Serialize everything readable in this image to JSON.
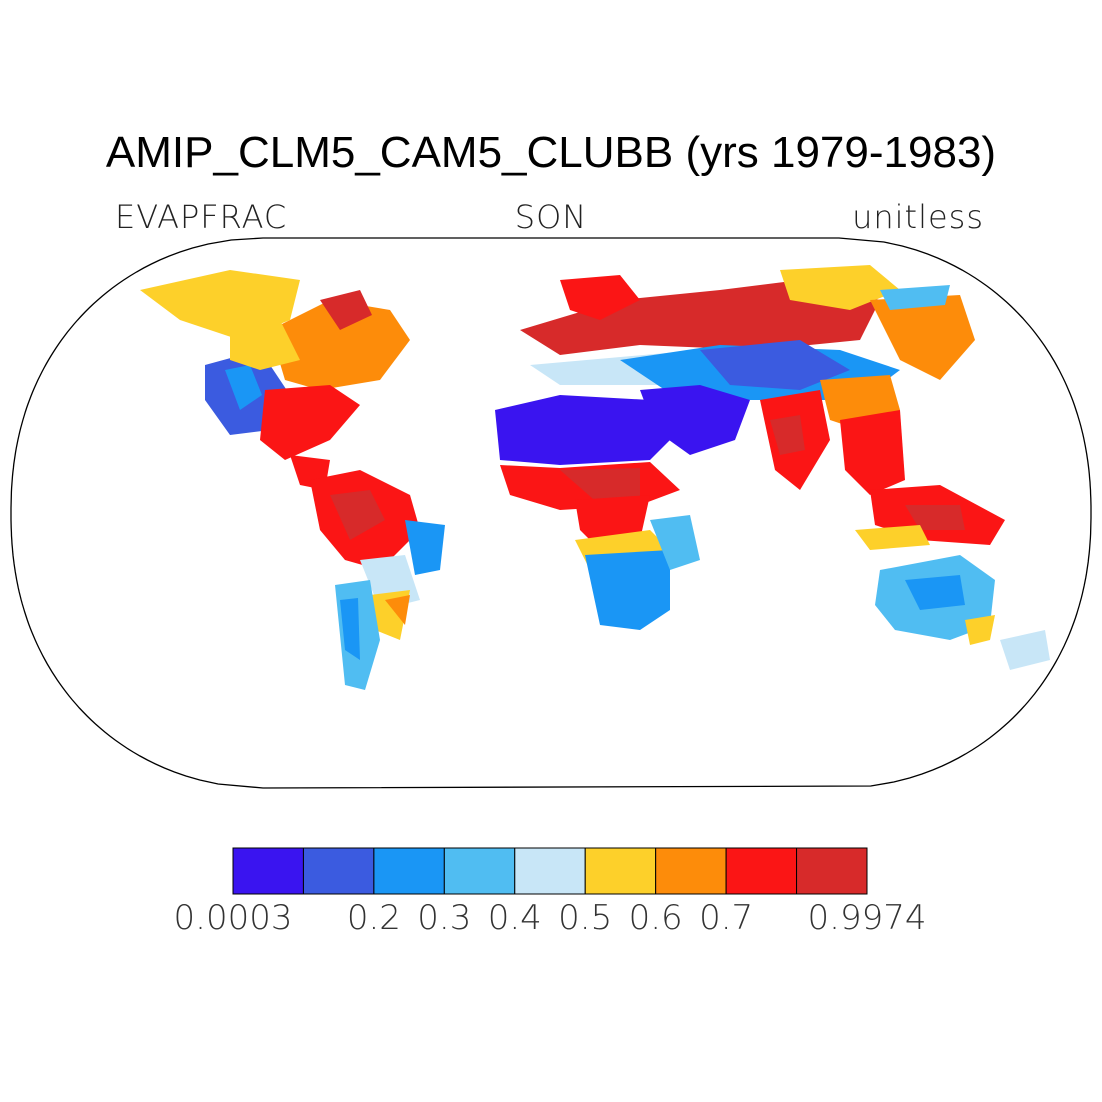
{
  "title": "AMIP_CLM5_CAM5_CLUBB (yrs 1979-1983)",
  "variable": "EVAPFRAC",
  "season": "SON",
  "units": "unitless",
  "projection": "Robinson",
  "colorbar": {
    "colors": [
      "#3a14f0",
      "#3b5be0",
      "#1a96f5",
      "#50bdf2",
      "#c8e6f7",
      "#fdd02a",
      "#fd8c0a",
      "#fb1515",
      "#d72a2a"
    ],
    "tick_labels": [
      "0.0003",
      "0.2",
      "0.3",
      "0.4",
      "0.5",
      "0.6",
      "0.7",
      "0.9974"
    ]
  }
}
